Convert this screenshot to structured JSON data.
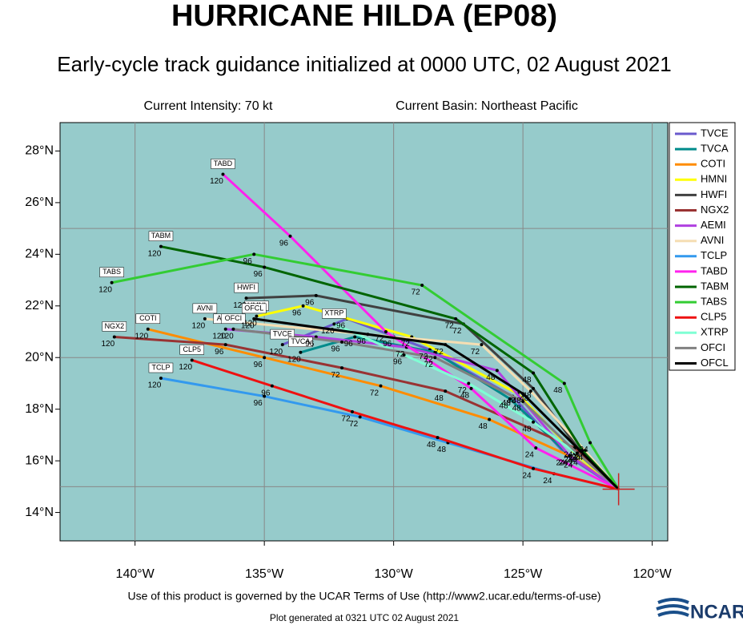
{
  "chart_data": {
    "type": "track",
    "title": "HURRICANE HILDA (EP08)",
    "subtitle": "Early-cycle track guidance initialized at 0000 UTC, 02 August 2021",
    "intensity": "Current Intensity: 70 kt",
    "basin": "Current Basin: Northeast Pacific",
    "footer": "Use of this product is governed by the UCAR Terms of Use (http://www2.ucar.edu/terms-of-use)",
    "generated": "Plot generated at 0321 UTC   02 August 2021",
    "logo": "NCAR",
    "xlim": [
      -142.9,
      -119.4
    ],
    "ylim": [
      12.9,
      29.1
    ],
    "xticks": [
      {
        "value": -140,
        "label": "140°W"
      },
      {
        "value": -135,
        "label": "135°W"
      },
      {
        "value": -130,
        "label": "130°W"
      },
      {
        "value": -125,
        "label": "125°W"
      },
      {
        "value": -120,
        "label": "120°W"
      }
    ],
    "yticks": [
      {
        "value": 14,
        "label": "14°N"
      },
      {
        "value": 16,
        "label": "16°N"
      },
      {
        "value": 18,
        "label": "18°N"
      },
      {
        "value": 20,
        "label": "20°N"
      },
      {
        "value": 22,
        "label": "22°N"
      },
      {
        "value": 24,
        "label": "24°N"
      },
      {
        "value": 26,
        "label": "26°N"
      },
      {
        "value": 28,
        "label": "28°N"
      }
    ],
    "ygrid": [
      15,
      20,
      25
    ],
    "hours": [
      0,
      24,
      48,
      72,
      96,
      120
    ],
    "series": [
      {
        "name": "TVCE",
        "color": "#6a5acd",
        "lon": [
          -121.3,
          -123.3,
          -125.4,
          -128.6,
          -131.8,
          -134.3
        ],
        "lat": [
          14.9,
          16.2,
          18.5,
          20.3,
          21.5,
          20.5
        ]
      },
      {
        "name": "TVCA",
        "color": "#008b8b",
        "lon": [
          -121.3,
          -123.2,
          -125.5,
          -128.4,
          -131.5,
          -133.6
        ],
        "lat": [
          14.9,
          16.2,
          18.4,
          20.2,
          20.8,
          20.2
        ]
      },
      {
        "name": "COTI",
        "color": "#ff8c00",
        "lon": [
          -121.3,
          -123.0,
          -126.3,
          -130.5,
          -135.0,
          -139.5
        ],
        "lat": [
          14.9,
          16.1,
          17.6,
          18.9,
          20.0,
          21.1
        ]
      },
      {
        "name": "HMNI",
        "color": "#ffff00",
        "lon": [
          -121.3,
          -123.0,
          -125.2,
          -129.3,
          -133.5,
          -135.3
        ],
        "lat": [
          14.9,
          16.3,
          18.6,
          20.8,
          22.0,
          21.6
        ]
      },
      {
        "name": "HWFI",
        "color": "#404040",
        "lon": [
          -121.3,
          -122.8,
          -124.6,
          -127.3,
          -133.0,
          -135.7
        ],
        "lat": [
          14.9,
          16.4,
          18.8,
          21.3,
          22.4,
          22.3
        ]
      },
      {
        "name": "NGX2",
        "color": "#993333",
        "lon": [
          -121.3,
          -123.0,
          -128.0,
          -132.0,
          -136.5,
          -140.8
        ],
        "lat": [
          14.9,
          16.5,
          18.7,
          19.6,
          20.5,
          20.8
        ]
      },
      {
        "name": "AEMI",
        "color": "#b040e0",
        "lon": [
          -121.3,
          -123.2,
          -126.0,
          -129.5,
          -133.0,
          -136.5
        ],
        "lat": [
          14.9,
          16.2,
          19.5,
          20.4,
          20.8,
          21.1
        ]
      },
      {
        "name": "AVNI",
        "color": "#f5deb3",
        "lon": [
          -121.3,
          -122.6,
          -124.7,
          -126.6,
          -130.0,
          -137.3
        ],
        "lat": [
          14.9,
          16.4,
          18.7,
          20.5,
          20.8,
          21.5
        ]
      },
      {
        "name": "TCLP",
        "color": "#3399ee",
        "lon": [
          -121.3,
          -123.8,
          -127.9,
          -131.3,
          -135.0,
          -139.0
        ],
        "lat": [
          14.9,
          15.5,
          16.7,
          17.7,
          18.5,
          19.2
        ]
      },
      {
        "name": "TABD",
        "color": "#ff22ee",
        "lon": [
          -121.3,
          -124.5,
          -127.0,
          -130.3,
          -134.0,
          -136.6
        ],
        "lat": [
          14.9,
          16.5,
          18.8,
          21.0,
          24.7,
          27.1
        ]
      },
      {
        "name": "TABM",
        "color": "#006400",
        "lon": [
          -121.3,
          -122.7,
          -124.6,
          -127.6,
          -135.0,
          -139.0
        ],
        "lat": [
          14.9,
          16.4,
          19.4,
          21.5,
          23.5,
          24.3
        ]
      },
      {
        "name": "TABS",
        "color": "#33cc33",
        "lon": [
          -121.3,
          -122.4,
          -123.4,
          -128.9,
          -135.4,
          -140.9
        ],
        "lat": [
          14.9,
          16.7,
          19.0,
          22.8,
          24.0,
          22.9
        ]
      },
      {
        "name": "CLP5",
        "color": "#ee1111",
        "lon": [
          -121.3,
          -124.6,
          -128.3,
          -131.6,
          -134.7,
          -137.8
        ],
        "lat": [
          14.9,
          15.7,
          16.9,
          17.9,
          18.9,
          19.9
        ]
      },
      {
        "name": "XTRP",
        "color": "#7fffd4",
        "lon": [
          -121.3,
          -122.8,
          -124.6,
          -127.1,
          -129.6,
          -132.3
        ],
        "lat": [
          14.9,
          16.2,
          17.5,
          19.0,
          20.1,
          21.3
        ]
      },
      {
        "name": "OFCI",
        "color": "#808080",
        "lon": [
          -121.3,
          -122.9,
          -125.0,
          -128.4,
          -132.0,
          -136.2
        ],
        "lat": [
          14.9,
          16.3,
          18.3,
          20.0,
          20.6,
          21.1
        ]
      },
      {
        "name": "OFCL",
        "color": "#000000",
        "lon": [
          -121.3,
          -122.8,
          -125.0,
          -128.0,
          -131.0,
          -135.4
        ],
        "lat": [
          14.9,
          16.4,
          18.6,
          20.5,
          20.9,
          21.5
        ]
      }
    ]
  }
}
